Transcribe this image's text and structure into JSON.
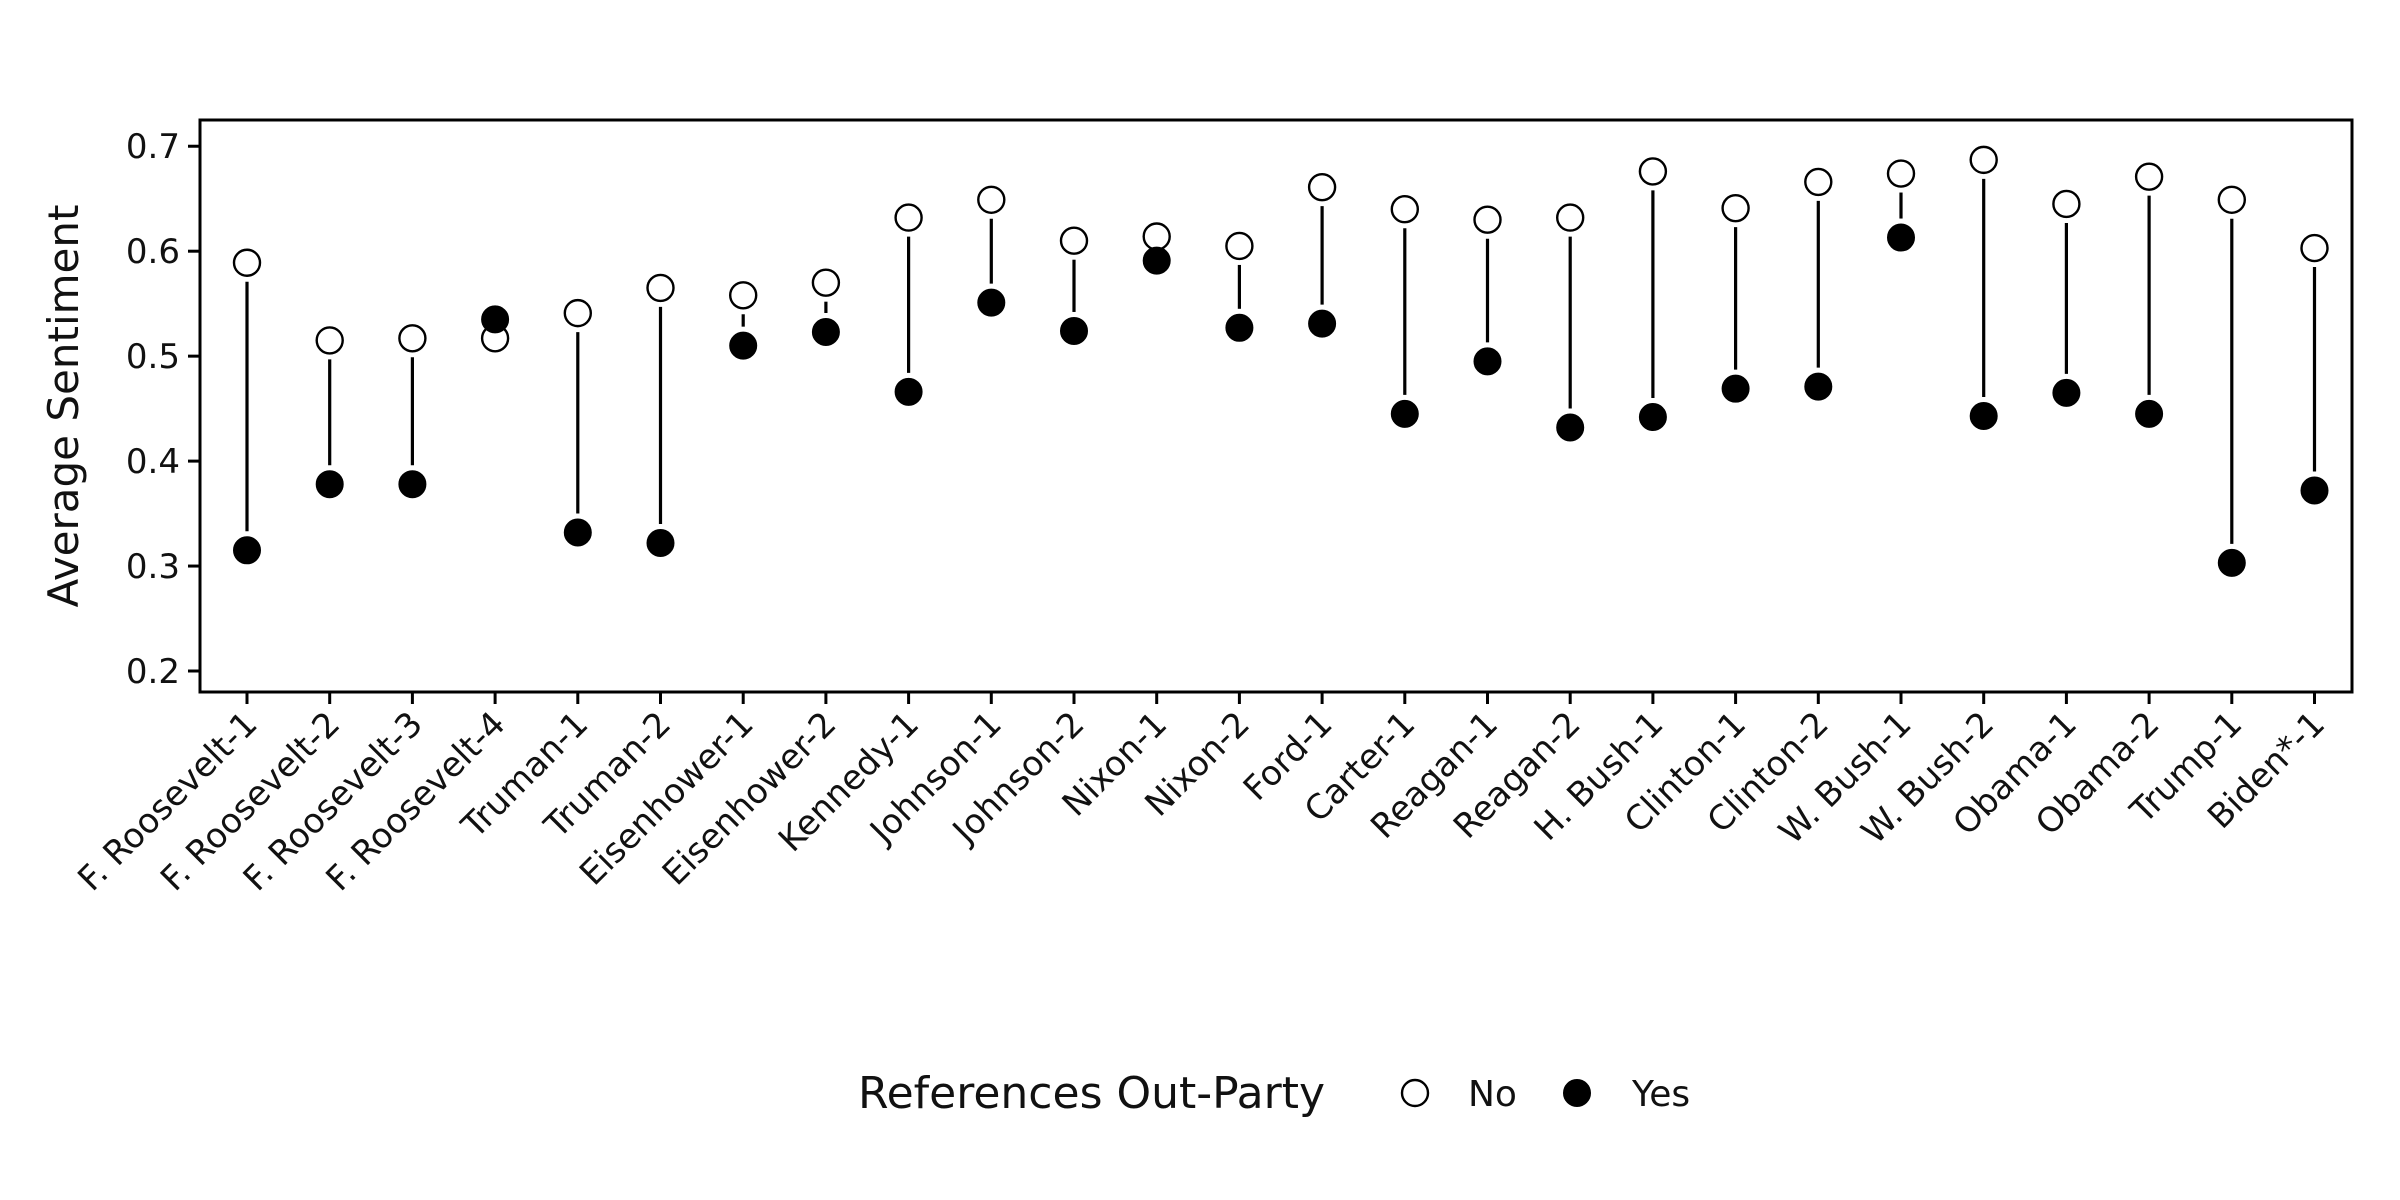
{
  "chart_data": {
    "type": "scatter",
    "title": "",
    "xlabel": "",
    "ylabel": "Average Sentiment",
    "ylim": [
      0.18,
      0.725
    ],
    "yticks": [
      0.2,
      0.3,
      0.4,
      0.5,
      0.6,
      0.7
    ],
    "ytick_labels": [
      "0.2",
      "0.3",
      "0.4",
      "0.5",
      "0.6",
      "0.7"
    ],
    "grid": false,
    "legend_position": "bottom",
    "legend": {
      "title": "References Out-Party",
      "entries": [
        {
          "label": "No",
          "marker": "open-circle"
        },
        {
          "label": "Yes",
          "marker": "filled-circle"
        }
      ]
    },
    "categories": [
      "F. Roosevelt-1",
      "F. Roosevelt-2",
      "F. Roosevelt-3",
      "F. Roosevelt-4",
      "Truman-1",
      "Truman-2",
      "Eisenhower-1",
      "Eisenhower-2",
      "Kennedy-1",
      "Johnson-1",
      "Johnson-2",
      "Nixon-1",
      "Nixon-2",
      "Ford-1",
      "Carter-1",
      "Reagan-1",
      "Reagan-2",
      "H. Bush-1",
      "Clinton-1",
      "Clinton-2",
      "W. Bush-1",
      "W. Bush-2",
      "Obama-1",
      "Obama-2",
      "Trump-1",
      "Biden*-1"
    ],
    "series": [
      {
        "name": "No",
        "values": [
          0.589,
          0.515,
          0.517,
          0.517,
          0.541,
          0.565,
          0.558,
          0.57,
          0.632,
          0.649,
          0.61,
          0.614,
          0.605,
          0.661,
          0.64,
          0.63,
          0.632,
          0.676,
          0.641,
          0.666,
          0.674,
          0.687,
          0.645,
          0.671,
          0.649,
          0.603
        ]
      },
      {
        "name": "Yes",
        "values": [
          0.315,
          0.378,
          0.378,
          0.535,
          0.332,
          0.322,
          0.51,
          0.523,
          0.466,
          0.551,
          0.524,
          0.591,
          0.527,
          0.531,
          0.445,
          0.495,
          0.432,
          0.442,
          0.469,
          0.471,
          0.613,
          0.443,
          0.465,
          0.445,
          0.303,
          0.372
        ]
      }
    ]
  }
}
